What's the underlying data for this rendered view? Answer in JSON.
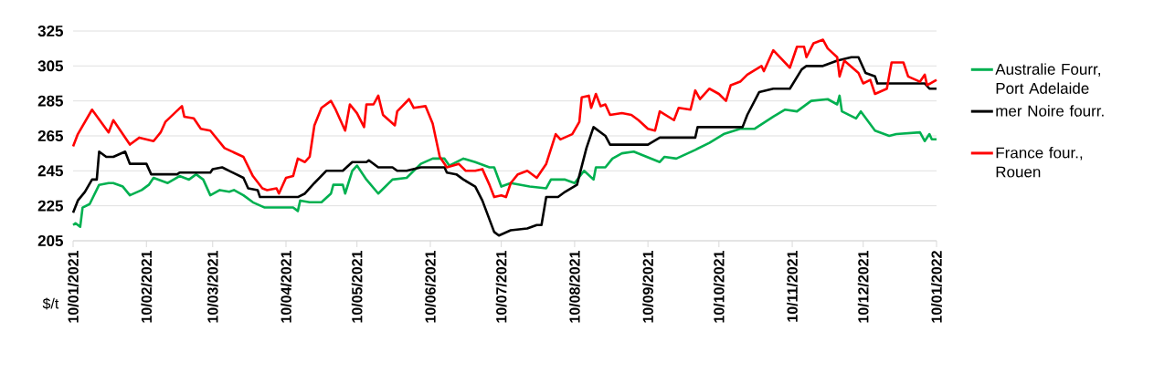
{
  "chart_data": {
    "type": "line",
    "ylabel": "$/t",
    "xlim": [
      "2021-01-10",
      "2022-01-10"
    ],
    "ylim": [
      205,
      325
    ],
    "xticks": [
      {
        "value": "2021-01-10",
        "label": "10/01/2021"
      },
      {
        "value": "2021-02-10",
        "label": "10/02/2021"
      },
      {
        "value": "2021-03-10",
        "label": "10/03/2021"
      },
      {
        "value": "2021-04-10",
        "label": "10/04/2021"
      },
      {
        "value": "2021-05-10",
        "label": "10/05/2021"
      },
      {
        "value": "2021-06-10",
        "label": "10/06/2021"
      },
      {
        "value": "2021-07-10",
        "label": "10/07/2021"
      },
      {
        "value": "2021-08-10",
        "label": "10/08/2021"
      },
      {
        "value": "2021-09-10",
        "label": "10/09/2021"
      },
      {
        "value": "2021-10-10",
        "label": "10/10/2021"
      },
      {
        "value": "2021-11-10",
        "label": "10/11/2021"
      },
      {
        "value": "2021-12-10",
        "label": "10/12/2021"
      },
      {
        "value": "2022-01-10",
        "label": "10/01/2022"
      }
    ],
    "yticks": [
      205,
      225,
      245,
      265,
      285,
      305,
      325
    ],
    "grid": "y",
    "legend": "right",
    "series": [
      {
        "name": "Australie Fourr, Port Adelaide",
        "color": "#00b050",
        "x": [
          "2021-01-10",
          "2021-01-11",
          "2021-01-13",
          "2021-01-14",
          "2021-01-17",
          "2021-01-21",
          "2021-01-25",
          "2021-01-27",
          "2021-01-31",
          "2021-02-03",
          "2021-02-08",
          "2021-02-11",
          "2021-02-13",
          "2021-02-19",
          "2021-02-24",
          "2021-02-28",
          "2021-03-03",
          "2021-03-06",
          "2021-03-09",
          "2021-03-13",
          "2021-03-17",
          "2021-03-19",
          "2021-03-23",
          "2021-03-27",
          "2021-04-01",
          "2021-04-06",
          "2021-04-13",
          "2021-04-15",
          "2021-04-16",
          "2021-04-20",
          "2021-04-25",
          "2021-04-29",
          "2021-04-30",
          "2021-05-04",
          "2021-05-05",
          "2021-05-08",
          "2021-05-10",
          "2021-05-14",
          "2021-05-19",
          "2021-05-25",
          "2021-05-31",
          "2021-06-06",
          "2021-06-11",
          "2021-06-16",
          "2021-06-18",
          "2021-06-24",
          "2021-06-29",
          "2021-07-05",
          "2021-07-07",
          "2021-07-10",
          "2021-07-14",
          "2021-07-22",
          "2021-07-29",
          "2021-07-31",
          "2021-08-06",
          "2021-08-10",
          "2021-08-14",
          "2021-08-18",
          "2021-08-19",
          "2021-08-23",
          "2021-08-26",
          "2021-08-30",
          "2021-09-04",
          "2021-09-15",
          "2021-09-17",
          "2021-09-22",
          "2021-09-30",
          "2021-10-06",
          "2021-10-12",
          "2021-10-19",
          "2021-10-25",
          "2021-11-02",
          "2021-11-07",
          "2021-11-12",
          "2021-11-18",
          "2021-11-25",
          "2021-11-29",
          "2021-11-30",
          "2021-12-01",
          "2021-12-07",
          "2021-12-09",
          "2021-12-15",
          "2021-12-21",
          "2021-12-24",
          "2022-01-03",
          "2022-01-05",
          "2022-01-07",
          "2022-01-08",
          "2022-01-10"
        ],
        "values": [
          214,
          215,
          213,
          224,
          226,
          237,
          238,
          238,
          236,
          231,
          234,
          237,
          241,
          238,
          242,
          240,
          243,
          240,
          231,
          234,
          233,
          234,
          231,
          227,
          224,
          224,
          224,
          222,
          228,
          227,
          227,
          232,
          237,
          237,
          232,
          245,
          248,
          240,
          232,
          240,
          241,
          249,
          252,
          252,
          248,
          252,
          250,
          247,
          247,
          236,
          238,
          236,
          235,
          240,
          240,
          238,
          245,
          240,
          247,
          247,
          252,
          255,
          256,
          250,
          253,
          252,
          257,
          261,
          266,
          269,
          269,
          276,
          280,
          279,
          285,
          286,
          283,
          288,
          279,
          275,
          279,
          268,
          265,
          266,
          267,
          262,
          266,
          263,
          263
        ]
      },
      {
        "name": "mer Noire fourr.",
        "color": "#000000",
        "x": [
          "2021-01-10",
          "2021-01-12",
          "2021-01-15",
          "2021-01-18",
          "2021-01-20",
          "2021-01-21",
          "2021-01-24",
          "2021-01-27",
          "2021-02-01",
          "2021-02-03",
          "2021-02-10",
          "2021-02-12",
          "2021-02-23",
          "2021-02-24",
          "2021-03-09",
          "2021-03-10",
          "2021-03-14",
          "2021-03-17",
          "2021-03-23",
          "2021-03-25",
          "2021-03-29",
          "2021-03-30",
          "2021-04-15",
          "2021-04-18",
          "2021-04-22",
          "2021-04-27",
          "2021-05-04",
          "2021-05-08",
          "2021-05-14",
          "2021-05-15",
          "2021-05-19",
          "2021-05-25",
          "2021-05-27",
          "2021-05-31",
          "2021-06-06",
          "2021-06-16",
          "2021-06-17",
          "2021-06-21",
          "2021-06-24",
          "2021-06-29",
          "2021-07-02",
          "2021-07-07",
          "2021-07-09",
          "2021-07-14",
          "2021-07-21",
          "2021-07-25",
          "2021-07-27",
          "2021-07-29",
          "2021-08-03",
          "2021-08-06",
          "2021-08-11",
          "2021-08-15",
          "2021-08-18",
          "2021-08-23",
          "2021-08-25",
          "2021-09-10",
          "2021-09-15",
          "2021-09-30",
          "2021-10-01",
          "2021-10-20",
          "2021-10-22",
          "2021-10-27",
          "2021-11-02",
          "2021-11-09",
          "2021-11-14",
          "2021-11-16",
          "2021-11-23",
          "2021-11-29",
          "2021-12-05",
          "2021-12-08",
          "2021-12-11",
          "2021-12-15",
          "2021-12-16",
          "2022-01-05",
          "2022-01-07",
          "2022-01-10"
        ],
        "values": [
          221,
          228,
          233,
          240,
          240,
          256,
          253,
          253,
          256,
          249,
          249,
          243,
          243,
          244,
          244,
          246,
          247,
          245,
          241,
          235,
          234,
          230,
          230,
          232,
          238,
          245,
          245,
          250,
          250,
          251,
          247,
          247,
          245,
          245,
          247,
          247,
          244,
          243,
          240,
          236,
          228,
          210,
          208,
          211,
          212,
          214,
          214,
          230,
          230,
          233,
          237,
          258,
          270,
          265,
          260,
          260,
          264,
          264,
          270,
          270,
          277,
          290,
          292,
          292,
          303,
          305,
          305,
          308,
          310,
          310,
          301,
          299,
          295,
          295,
          292,
          292
        ]
      },
      {
        "name": "France four., Rouen",
        "color": "#ff0000",
        "x": [
          "2021-01-10",
          "2021-01-12",
          "2021-01-18",
          "2021-01-25",
          "2021-01-27",
          "2021-02-03",
          "2021-02-07",
          "2021-02-13",
          "2021-02-16",
          "2021-02-18",
          "2021-02-25",
          "2021-02-26",
          "2021-03-02",
          "2021-03-05",
          "2021-03-09",
          "2021-03-15",
          "2021-03-23",
          "2021-03-27",
          "2021-03-31",
          "2021-04-02",
          "2021-04-06",
          "2021-04-07",
          "2021-04-10",
          "2021-04-13",
          "2021-04-15",
          "2021-04-18",
          "2021-04-20",
          "2021-04-22",
          "2021-04-25",
          "2021-04-29",
          "2021-05-01",
          "2021-05-05",
          "2021-05-07",
          "2021-05-10",
          "2021-05-13",
          "2021-05-14",
          "2021-05-17",
          "2021-05-19",
          "2021-05-21",
          "2021-05-26",
          "2021-05-27",
          "2021-06-01",
          "2021-06-03",
          "2021-06-08",
          "2021-06-11",
          "2021-06-14",
          "2021-06-17",
          "2021-06-22",
          "2021-06-25",
          "2021-06-29",
          "2021-07-02",
          "2021-07-05",
          "2021-07-07",
          "2021-07-10",
          "2021-07-12",
          "2021-07-14",
          "2021-07-17",
          "2021-07-21",
          "2021-07-25",
          "2021-07-29",
          "2021-08-02",
          "2021-08-04",
          "2021-08-09",
          "2021-08-12",
          "2021-08-13",
          "2021-08-16",
          "2021-08-17",
          "2021-08-19",
          "2021-08-21",
          "2021-08-23",
          "2021-08-25",
          "2021-08-30",
          "2021-09-03",
          "2021-09-06",
          "2021-09-10",
          "2021-09-13",
          "2021-09-15",
          "2021-09-21",
          "2021-09-23",
          "2021-09-28",
          "2021-09-30",
          "2021-10-02",
          "2021-10-06",
          "2021-10-10",
          "2021-10-13",
          "2021-10-15",
          "2021-10-19",
          "2021-10-22",
          "2021-10-28",
          "2021-10-29",
          "2021-11-02",
          "2021-11-09",
          "2021-11-12",
          "2021-11-15",
          "2021-11-16",
          "2021-11-19",
          "2021-11-23",
          "2021-11-25",
          "2021-11-29",
          "2021-11-30",
          "2021-12-02",
          "2021-12-08",
          "2021-12-10",
          "2021-12-13",
          "2021-12-15",
          "2021-12-20",
          "2021-12-22",
          "2021-12-27",
          "2021-12-29",
          "2022-01-03",
          "2022-01-05",
          "2022-01-06",
          "2022-01-10"
        ],
        "values": [
          259,
          266,
          280,
          267,
          274,
          260,
          264,
          262,
          267,
          273,
          282,
          276,
          275,
          269,
          268,
          258,
          253,
          242,
          235,
          234,
          235,
          232,
          241,
          242,
          252,
          250,
          253,
          271,
          281,
          285,
          280,
          268,
          283,
          278,
          270,
          283,
          283,
          288,
          277,
          271,
          279,
          286,
          281,
          282,
          272,
          253,
          247,
          249,
          245,
          245,
          246,
          237,
          230,
          231,
          230,
          238,
          243,
          245,
          241,
          249,
          266,
          263,
          266,
          273,
          287,
          288,
          281,
          289,
          282,
          283,
          277,
          278,
          277,
          274,
          269,
          268,
          279,
          274,
          281,
          280,
          291,
          286,
          292,
          289,
          285,
          294,
          296,
          300,
          305,
          302,
          314,
          304,
          316,
          316,
          310,
          318,
          320,
          315,
          310,
          299,
          308,
          301,
          295,
          297,
          289,
          292,
          307,
          307,
          299,
          296,
          300,
          294,
          297
        ]
      }
    ]
  }
}
